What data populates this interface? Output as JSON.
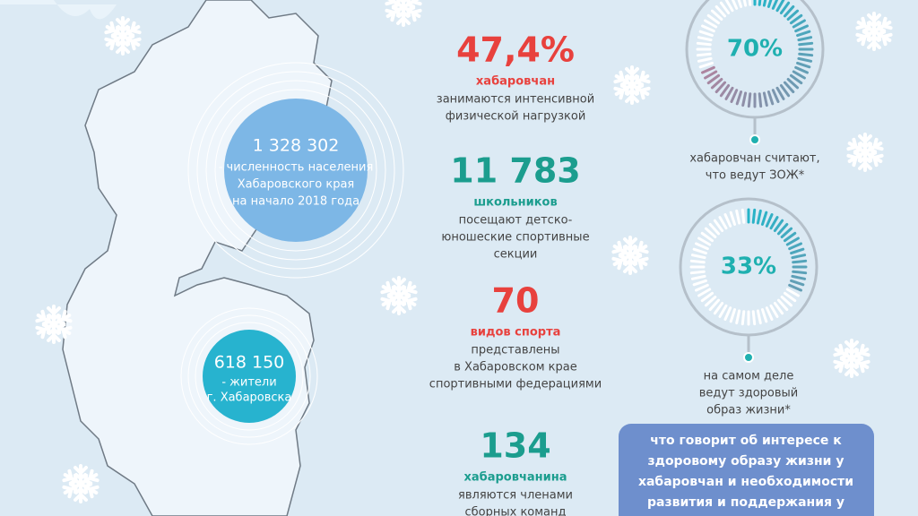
{
  "region": {
    "value": "1 328 302",
    "lines": [
      "- численность населения",
      "Хабаровского края",
      "на начало 2018 года"
    ]
  },
  "city": {
    "value": "618 150",
    "lines": [
      "- жители",
      "г. Хабаровска"
    ]
  },
  "facts": [
    {
      "value": "47,4%",
      "subject": "хабаровчан",
      "lines": [
        "занимаются интенсивной",
        "физической нагрузкой"
      ]
    },
    {
      "value": "11 783",
      "subject": "школьников",
      "lines": [
        "посещают детско-",
        "юношеские спортивные",
        "секции"
      ]
    },
    {
      "value": "70",
      "subject": "видов спорта",
      "lines": [
        "представлены",
        "в Хабаровском крае",
        "спортивными федерациями"
      ]
    },
    {
      "value": "134",
      "subject": "хабаровчанина",
      "lines": [
        "являются членами",
        "сборных команд"
      ]
    }
  ],
  "gauges": [
    {
      "value": 70,
      "label": "70%",
      "lines": [
        "хабаровчан считают,",
        "что ведут ЗОЖ*"
      ]
    },
    {
      "value": 33,
      "label": "33%",
      "lines": [
        "на самом деле",
        "ведут здоровый",
        "образ жизни*"
      ]
    }
  ],
  "note": {
    "lines": [
      "что говорит об интересе к",
      "здоровому образу жизни у",
      "хабаровчан и необходимости",
      "развития и поддержания у"
    ]
  }
}
